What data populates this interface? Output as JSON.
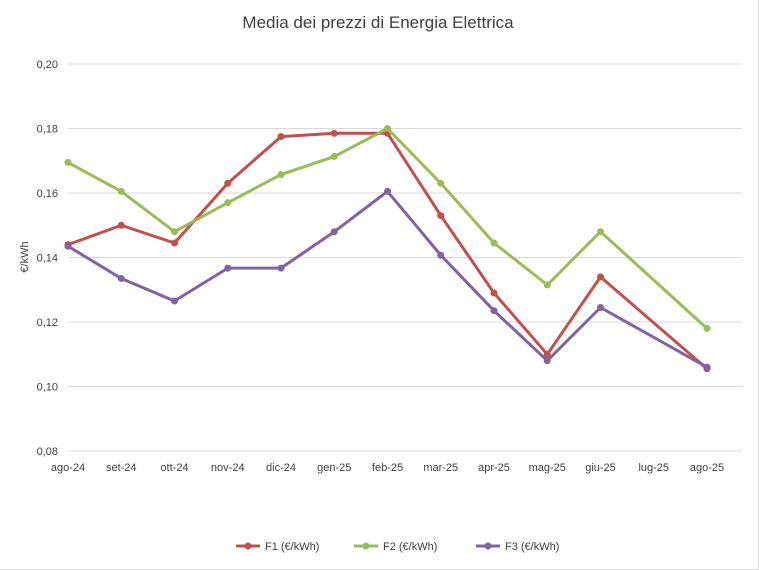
{
  "chart_data": {
    "type": "line",
    "title": "Media dei prezzi di Energia Elettrica",
    "xlabel": "",
    "ylabel": "€/kWh",
    "ylim": [
      0.08,
      0.2
    ],
    "yticks": [
      "0,08",
      "0,10",
      "0,12",
      "0,14",
      "0,16",
      "0,18",
      "0,20"
    ],
    "ytick_values": [
      0.08,
      0.1,
      0.12,
      0.14,
      0.16,
      0.18,
      0.2
    ],
    "categories": [
      "ago-24",
      "set-24",
      "ott-24",
      "nov-24",
      "dic-24",
      "gen-25",
      "feb-25",
      "mar-25",
      "apr-25",
      "mag-25",
      "giu-25",
      "lug-25",
      "ago-25"
    ],
    "grid": true,
    "legend_position": "bottom",
    "series": [
      {
        "name": "F1 (€/kWh)",
        "color": "#c0504d",
        "values": [
          0.144,
          0.15,
          0.1445,
          0.163,
          0.1775,
          0.1785,
          0.1785,
          0.153,
          0.129,
          0.11,
          0.134,
          null,
          0.1055
        ]
      },
      {
        "name": "F2 (€/kWh)",
        "color": "#9bbb59",
        "values": [
          0.1695,
          0.1605,
          0.148,
          0.157,
          0.1657,
          0.1713,
          0.18,
          0.163,
          0.1445,
          0.1315,
          0.148,
          null,
          0.118
        ]
      },
      {
        "name": "F3 (€/kWh)",
        "color": "#8064a2",
        "values": [
          0.1435,
          0.1335,
          0.1265,
          0.1367,
          0.1367,
          0.148,
          0.1605,
          0.1407,
          0.1235,
          0.108,
          0.1245,
          null,
          0.106
        ]
      }
    ]
  }
}
